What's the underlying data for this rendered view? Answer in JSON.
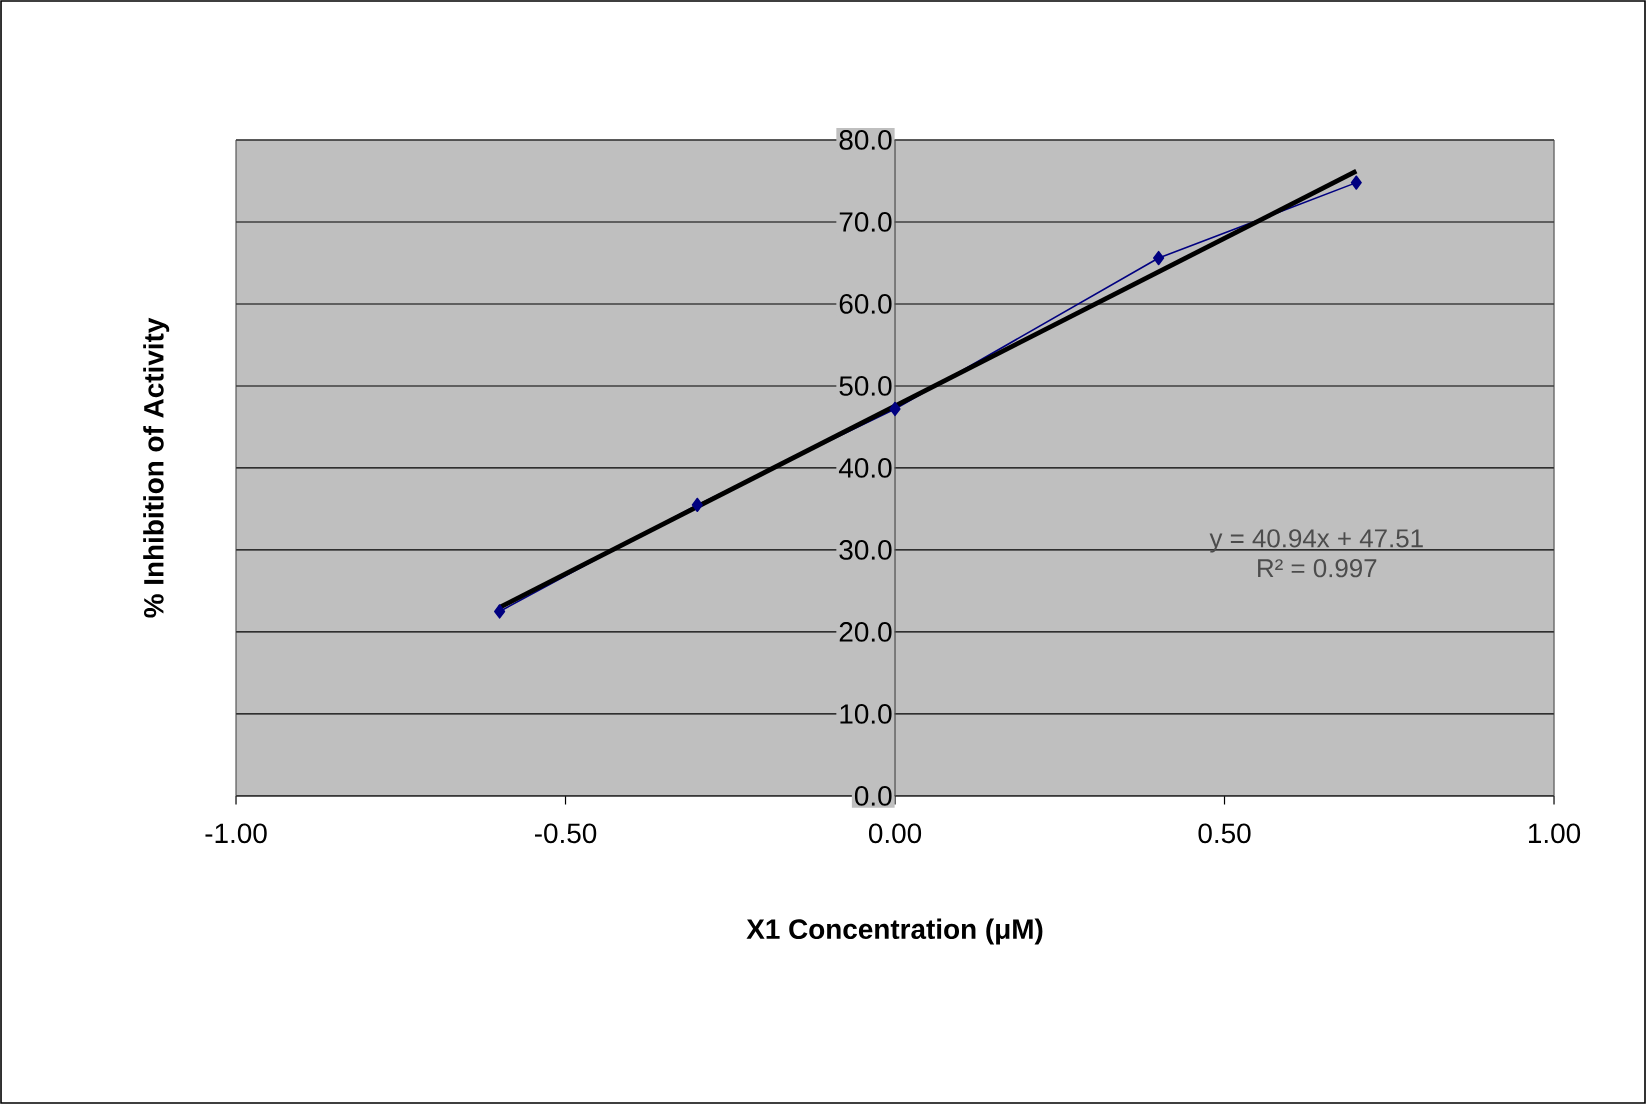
{
  "chart_data": {
    "type": "line",
    "xlabel": "X1 Concentration (μM)",
    "ylabel": "% Inhibition of Activity",
    "x": [
      -0.6,
      -0.3,
      0,
      0.4,
      0.7
    ],
    "series": [
      {
        "color": "#000080",
        "marker": "diamond",
        "values": [
          22.5,
          35.5,
          47.2,
          65.6,
          74.8
        ]
      },
      {
        "color": "#000000",
        "marker": "none",
        "x": [
          -0.6,
          0.7
        ],
        "values": [
          23.0,
          76.2
        ]
      }
    ],
    "xlim": [
      -1,
      1
    ],
    "ylim": [
      0,
      80
    ],
    "xticks": [
      {
        "value": -1,
        "label": "-1.00"
      },
      {
        "value": -0.5,
        "label": "-0.50"
      },
      {
        "value": 0,
        "label": "0.00"
      },
      {
        "value": 0.5,
        "label": "0.50"
      },
      {
        "value": 1,
        "label": "1.00"
      }
    ],
    "yticks": [
      {
        "value": 0,
        "label": "0.0"
      },
      {
        "value": 10,
        "label": "10.0"
      },
      {
        "value": 20,
        "label": "20.0"
      },
      {
        "value": 30,
        "label": "30.0"
      },
      {
        "value": 40,
        "label": "40.0"
      },
      {
        "value": 50,
        "label": "50.0"
      },
      {
        "value": 60,
        "label": "60.0"
      },
      {
        "value": 70,
        "label": "70.0"
      },
      {
        "value": 80,
        "label": "80.0"
      }
    ],
    "grid": "y",
    "annotations": [
      "y = 40.94x  + 47.51",
      "R² = 0.997"
    ]
  }
}
